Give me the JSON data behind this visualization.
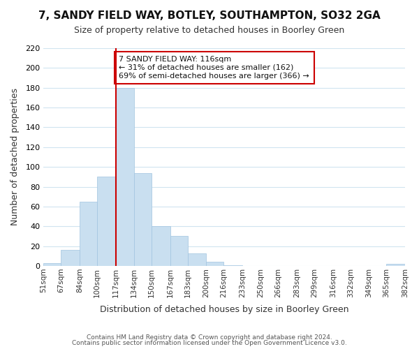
{
  "title": "7, SANDY FIELD WAY, BOTLEY, SOUTHAMPTON, SO32 2GA",
  "subtitle": "Size of property relative to detached houses in Boorley Green",
  "xlabel": "Distribution of detached houses by size in Boorley Green",
  "ylabel": "Number of detached properties",
  "bar_edges": [
    51,
    67,
    84,
    100,
    117,
    134,
    150,
    167,
    183,
    200,
    216,
    233,
    250,
    266,
    283,
    299,
    316,
    332,
    349,
    365,
    382
  ],
  "bar_heights": [
    3,
    16,
    65,
    90,
    180,
    94,
    40,
    30,
    13,
    4,
    1,
    0,
    0,
    0,
    0,
    0,
    0,
    0,
    0,
    2
  ],
  "bar_color": "#c9dff0",
  "bar_edgecolor": "#a0c4e0",
  "vline_x": 117,
  "vline_color": "#cc0000",
  "annotation_title": "7 SANDY FIELD WAY: 116sqm",
  "annotation_line1": "← 31% of detached houses are smaller (162)",
  "annotation_line2": "69% of semi-detached houses are larger (366) →",
  "annotation_box_color": "#ffffff",
  "annotation_box_edgecolor": "#cc0000",
  "ylim": [
    0,
    220
  ],
  "tick_labels": [
    "51sqm",
    "67sqm",
    "84sqm",
    "100sqm",
    "117sqm",
    "134sqm",
    "150sqm",
    "167sqm",
    "183sqm",
    "200sqm",
    "216sqm",
    "233sqm",
    "250sqm",
    "266sqm",
    "283sqm",
    "299sqm",
    "316sqm",
    "332sqm",
    "349sqm",
    "365sqm",
    "382sqm"
  ],
  "footer1": "Contains HM Land Registry data © Crown copyright and database right 2024.",
  "footer2": "Contains public sector information licensed under the Open Government Licence v3.0.",
  "background_color": "#ffffff",
  "grid_color": "#d0e4f0"
}
